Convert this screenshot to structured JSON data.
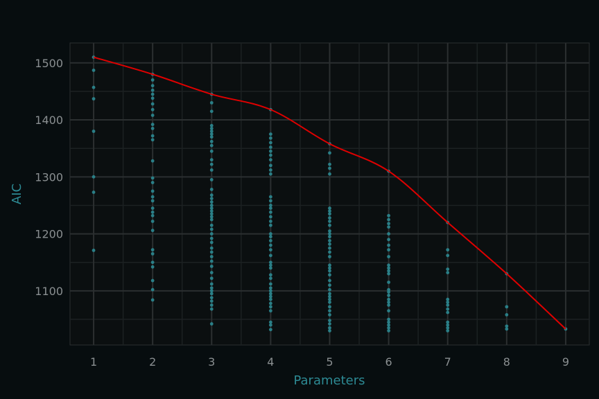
{
  "chart_data": {
    "type": "scatter",
    "title": "",
    "xlabel": "Parameters",
    "ylabel": "AIC",
    "xlim": [
      0.6,
      9.4
    ],
    "ylim": [
      1005,
      1535
    ],
    "x_ticks": [
      1,
      2,
      3,
      4,
      5,
      6,
      7,
      8,
      9
    ],
    "y_ticks": [
      1100,
      1200,
      1300,
      1400,
      1500
    ],
    "grid": true,
    "colors": {
      "background": "#070d0f",
      "panel": "#0b0f10",
      "grid_major": "#2b2f30",
      "grid_minor": "#1c2122",
      "points": "#2a7f87",
      "line": "#e00000",
      "axis_title": "#2d8a94",
      "tick_label": "#8a8f91"
    },
    "series": [
      {
        "type": "scatter",
        "points": [
          [
            1,
            1510
          ],
          [
            1,
            1487
          ],
          [
            1,
            1457
          ],
          [
            1,
            1437
          ],
          [
            1,
            1380
          ],
          [
            1,
            1300
          ],
          [
            1,
            1273
          ],
          [
            1,
            1171
          ],
          [
            2,
            1480
          ],
          [
            2,
            1470
          ],
          [
            2,
            1460
          ],
          [
            2,
            1452
          ],
          [
            2,
            1445
          ],
          [
            2,
            1438
          ],
          [
            2,
            1428
          ],
          [
            2,
            1418
          ],
          [
            2,
            1408
          ],
          [
            2,
            1392
          ],
          [
            2,
            1385
          ],
          [
            2,
            1372
          ],
          [
            2,
            1365
          ],
          [
            2,
            1328
          ],
          [
            2,
            1298
          ],
          [
            2,
            1290
          ],
          [
            2,
            1275
          ],
          [
            2,
            1265
          ],
          [
            2,
            1258
          ],
          [
            2,
            1245
          ],
          [
            2,
            1238
          ],
          [
            2,
            1232
          ],
          [
            2,
            1222
          ],
          [
            2,
            1206
          ],
          [
            2,
            1172
          ],
          [
            2,
            1165
          ],
          [
            2,
            1150
          ],
          [
            2,
            1142
          ],
          [
            2,
            1118
          ],
          [
            2,
            1102
          ],
          [
            2,
            1084
          ],
          [
            3,
            1445
          ],
          [
            3,
            1430
          ],
          [
            3,
            1415
          ],
          [
            3,
            1390
          ],
          [
            3,
            1385
          ],
          [
            3,
            1380
          ],
          [
            3,
            1375
          ],
          [
            3,
            1370
          ],
          [
            3,
            1362
          ],
          [
            3,
            1355
          ],
          [
            3,
            1345
          ],
          [
            3,
            1330
          ],
          [
            3,
            1322
          ],
          [
            3,
            1312
          ],
          [
            3,
            1295
          ],
          [
            3,
            1278
          ],
          [
            3,
            1268
          ],
          [
            3,
            1262
          ],
          [
            3,
            1256
          ],
          [
            3,
            1250
          ],
          [
            3,
            1245
          ],
          [
            3,
            1240
          ],
          [
            3,
            1235
          ],
          [
            3,
            1230
          ],
          [
            3,
            1225
          ],
          [
            3,
            1215
          ],
          [
            3,
            1208
          ],
          [
            3,
            1200
          ],
          [
            3,
            1192
          ],
          [
            3,
            1185
          ],
          [
            3,
            1175
          ],
          [
            3,
            1168
          ],
          [
            3,
            1160
          ],
          [
            3,
            1152
          ],
          [
            3,
            1143
          ],
          [
            3,
            1132
          ],
          [
            3,
            1122
          ],
          [
            3,
            1112
          ],
          [
            3,
            1105
          ],
          [
            3,
            1100
          ],
          [
            3,
            1095
          ],
          [
            3,
            1088
          ],
          [
            3,
            1082
          ],
          [
            3,
            1075
          ],
          [
            3,
            1068
          ],
          [
            3,
            1042
          ],
          [
            4,
            1418
          ],
          [
            4,
            1375
          ],
          [
            4,
            1368
          ],
          [
            4,
            1360
          ],
          [
            4,
            1352
          ],
          [
            4,
            1345
          ],
          [
            4,
            1338
          ],
          [
            4,
            1330
          ],
          [
            4,
            1320
          ],
          [
            4,
            1312
          ],
          [
            4,
            1305
          ],
          [
            4,
            1265
          ],
          [
            4,
            1258
          ],
          [
            4,
            1250
          ],
          [
            4,
            1245
          ],
          [
            4,
            1238
          ],
          [
            4,
            1230
          ],
          [
            4,
            1222
          ],
          [
            4,
            1215
          ],
          [
            4,
            1200
          ],
          [
            4,
            1195
          ],
          [
            4,
            1188
          ],
          [
            4,
            1180
          ],
          [
            4,
            1172
          ],
          [
            4,
            1162
          ],
          [
            4,
            1150
          ],
          [
            4,
            1145
          ],
          [
            4,
            1140
          ],
          [
            4,
            1128
          ],
          [
            4,
            1122
          ],
          [
            4,
            1112
          ],
          [
            4,
            1105
          ],
          [
            4,
            1100
          ],
          [
            4,
            1095
          ],
          [
            4,
            1090
          ],
          [
            4,
            1085
          ],
          [
            4,
            1078
          ],
          [
            4,
            1072
          ],
          [
            4,
            1065
          ],
          [
            4,
            1045
          ],
          [
            4,
            1040
          ],
          [
            4,
            1032
          ],
          [
            5,
            1358
          ],
          [
            5,
            1342
          ],
          [
            5,
            1322
          ],
          [
            5,
            1315
          ],
          [
            5,
            1305
          ],
          [
            5,
            1245
          ],
          [
            5,
            1240
          ],
          [
            5,
            1235
          ],
          [
            5,
            1228
          ],
          [
            5,
            1222
          ],
          [
            5,
            1215
          ],
          [
            5,
            1205
          ],
          [
            5,
            1200
          ],
          [
            5,
            1195
          ],
          [
            5,
            1188
          ],
          [
            5,
            1182
          ],
          [
            5,
            1175
          ],
          [
            5,
            1168
          ],
          [
            5,
            1160
          ],
          [
            5,
            1145
          ],
          [
            5,
            1140
          ],
          [
            5,
            1135
          ],
          [
            5,
            1128
          ],
          [
            5,
            1118
          ],
          [
            5,
            1110
          ],
          [
            5,
            1102
          ],
          [
            5,
            1095
          ],
          [
            5,
            1090
          ],
          [
            5,
            1085
          ],
          [
            5,
            1080
          ],
          [
            5,
            1072
          ],
          [
            5,
            1065
          ],
          [
            5,
            1058
          ],
          [
            5,
            1048
          ],
          [
            5,
            1042
          ],
          [
            5,
            1035
          ],
          [
            5,
            1030
          ],
          [
            6,
            1310
          ],
          [
            6,
            1232
          ],
          [
            6,
            1225
          ],
          [
            6,
            1218
          ],
          [
            6,
            1212
          ],
          [
            6,
            1200
          ],
          [
            6,
            1190
          ],
          [
            6,
            1180
          ],
          [
            6,
            1172
          ],
          [
            6,
            1160
          ],
          [
            6,
            1145
          ],
          [
            6,
            1140
          ],
          [
            6,
            1135
          ],
          [
            6,
            1130
          ],
          [
            6,
            1115
          ],
          [
            6,
            1102
          ],
          [
            6,
            1098
          ],
          [
            6,
            1092
          ],
          [
            6,
            1085
          ],
          [
            6,
            1080
          ],
          [
            6,
            1075
          ],
          [
            6,
            1065
          ],
          [
            6,
            1050
          ],
          [
            6,
            1045
          ],
          [
            6,
            1040
          ],
          [
            6,
            1035
          ],
          [
            6,
            1030
          ],
          [
            7,
            1220
          ],
          [
            7,
            1172
          ],
          [
            7,
            1162
          ],
          [
            7,
            1138
          ],
          [
            7,
            1132
          ],
          [
            7,
            1085
          ],
          [
            7,
            1080
          ],
          [
            7,
            1075
          ],
          [
            7,
            1068
          ],
          [
            7,
            1062
          ],
          [
            7,
            1045
          ],
          [
            7,
            1040
          ],
          [
            7,
            1035
          ],
          [
            7,
            1030
          ],
          [
            8,
            1130
          ],
          [
            8,
            1072
          ],
          [
            8,
            1058
          ],
          [
            8,
            1038
          ],
          [
            8,
            1033
          ],
          [
            9,
            1033
          ]
        ]
      },
      {
        "type": "line",
        "x": [
          1,
          2,
          3,
          4,
          5,
          6,
          7,
          8,
          9
        ],
        "y": [
          1510,
          1480,
          1445,
          1418,
          1358,
          1310,
          1220,
          1130,
          1033
        ]
      }
    ]
  }
}
